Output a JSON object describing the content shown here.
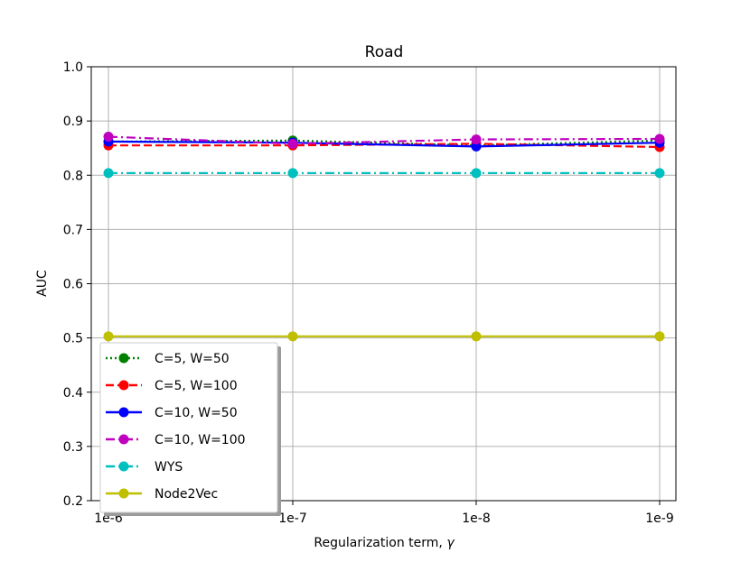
{
  "chart_data": {
    "type": "line",
    "title": "Road",
    "xlabel_text": "Regularization term, ",
    "xlabel_symbol": "γ",
    "ylabel": "AUC",
    "categories": [
      "1e-6",
      "1e-7",
      "1e-8",
      "1e-9"
    ],
    "ylim": [
      0.2,
      1.0
    ],
    "yticks": [
      "0.2",
      "0.3",
      "0.4",
      "0.5",
      "0.6",
      "0.7",
      "0.8",
      "0.9",
      "1.0"
    ],
    "grid": true,
    "legend_position": "lower-left",
    "series": [
      {
        "name": "C=5, W=50",
        "values": [
          0.862,
          0.864,
          0.855,
          0.864
        ],
        "color": "#008000",
        "style": "dotted"
      },
      {
        "name": "C=5, W=100",
        "values": [
          0.855,
          0.855,
          0.858,
          0.852
        ],
        "color": "#ff0000",
        "style": "dashed"
      },
      {
        "name": "C=10, W=50",
        "values": [
          0.862,
          0.86,
          0.853,
          0.86
        ],
        "color": "#0000ff",
        "style": "solid"
      },
      {
        "name": "C=10, W=100",
        "values": [
          0.871,
          0.858,
          0.866,
          0.867
        ],
        "color": "#bf00bf",
        "style": "dashdot"
      },
      {
        "name": "WYS",
        "values": [
          0.804,
          0.804,
          0.804,
          0.804
        ],
        "color": "#00bfbf",
        "style": "dashdot"
      },
      {
        "name": "Node2Vec",
        "values": [
          0.503,
          0.503,
          0.503,
          0.503
        ],
        "color": "#bfbf00",
        "style": "solid"
      }
    ]
  }
}
